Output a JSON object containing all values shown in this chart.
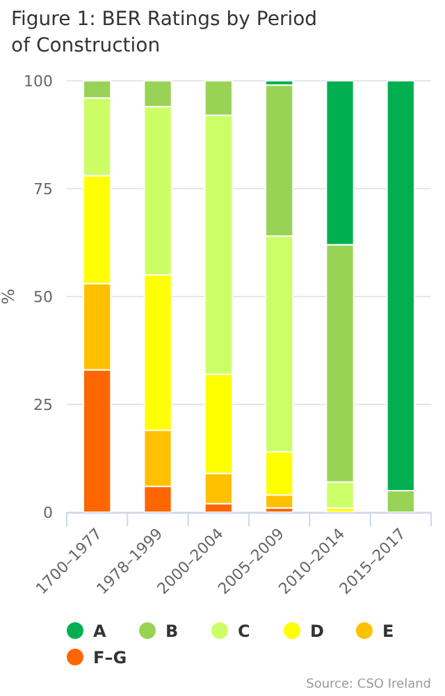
{
  "chart_data": {
    "type": "bar",
    "title": "Figure 1: BER Ratings by Period of Construction",
    "ylabel": "%",
    "categories": [
      "1700–1977",
      "1978–1999",
      "2000–2004",
      "2005–2009",
      "2010–2014",
      "2015–2017"
    ],
    "stacked": true,
    "ylim": [
      0,
      100
    ],
    "yticks": [
      0,
      25,
      50,
      75,
      100
    ],
    "grid": "y",
    "legend": "bottom",
    "annotations": [
      "Source: CSO Ireland"
    ],
    "series": [
      {
        "name": "F–G",
        "color": "#ff6600",
        "values": [
          33,
          6,
          2,
          1,
          0,
          0
        ]
      },
      {
        "name": "E",
        "color": "#ffc000",
        "values": [
          20,
          13,
          7,
          3,
          0,
          0
        ]
      },
      {
        "name": "D",
        "color": "#ffff00",
        "values": [
          25,
          36,
          23,
          10,
          1,
          0
        ]
      },
      {
        "name": "C",
        "color": "#ccff66",
        "values": [
          18,
          39,
          60,
          50,
          6,
          0
        ]
      },
      {
        "name": "B",
        "color": "#99d356",
        "values": [
          4,
          6,
          8,
          35,
          55,
          5
        ]
      },
      {
        "name": "A",
        "color": "#00b050",
        "values": [
          0,
          0,
          0,
          1,
          38,
          95
        ]
      }
    ]
  }
}
